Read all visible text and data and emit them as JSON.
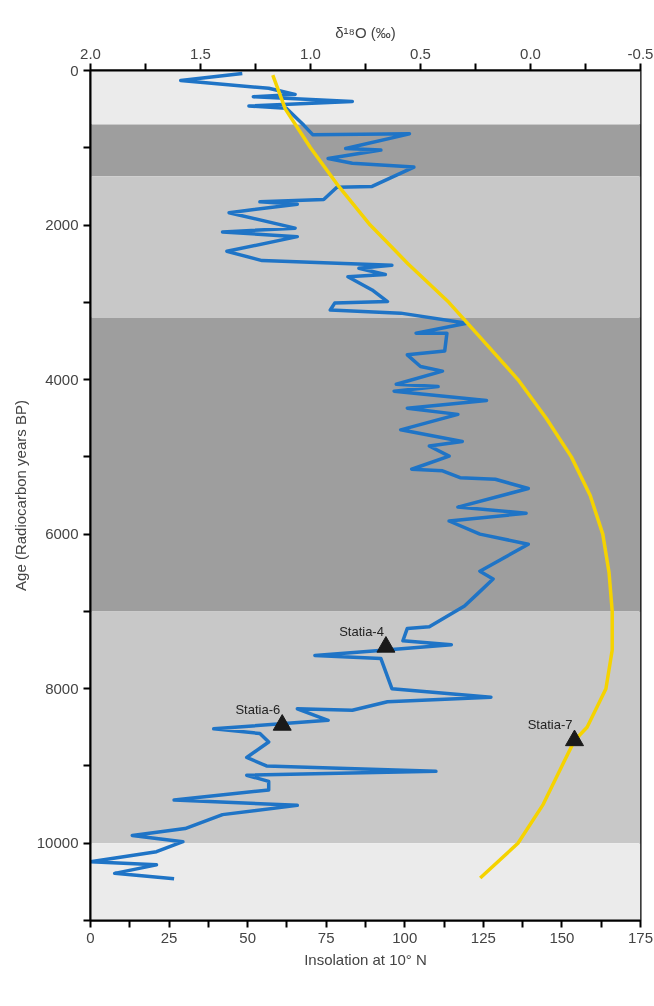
{
  "chart_data": {
    "type": "line",
    "xlabel": "Insolation at 10° N",
    "ylabel": "Age (Radiocarbon years BP)",
    "x2label": "δ¹⁸O (‰)",
    "xlim": [
      0,
      175
    ],
    "xticks": [
      0,
      {
        "value": 12.5,
        "label": null
      },
      25,
      {
        "value": 37.5,
        "label": null
      },
      50,
      {
        "value": 62.5,
        "label": null
      },
      75,
      {
        "value": 87.5,
        "label": null
      },
      100,
      {
        "value": 112.5,
        "label": null
      },
      125,
      {
        "value": 137.5,
        "label": null
      },
      150,
      {
        "value": 162.5,
        "label": null
      },
      175
    ],
    "x2lim": [
      2.0,
      -0.5
    ],
    "x2ticks": [
      {
        "value": 2.0,
        "label": "2.0"
      },
      {
        "value": 1.75,
        "label": null
      },
      {
        "value": 1.5,
        "label": "1.5"
      },
      {
        "value": 1.25,
        "label": null
      },
      {
        "value": 1.0,
        "label": "1.0"
      },
      {
        "value": 0.75,
        "label": null
      },
      {
        "value": 0.5,
        "label": "0.5"
      },
      {
        "value": 0.25,
        "label": null
      },
      {
        "value": 0.0,
        "label": "0.0"
      },
      {
        "value": -0.25,
        "label": null
      },
      {
        "value": -0.5,
        "label": "-0.5"
      }
    ],
    "ylim": [
      11000,
      0
    ],
    "yticks": [
      0,
      {
        "value": 1000,
        "label": null
      },
      2000,
      {
        "value": 3000,
        "label": null
      },
      4000,
      {
        "value": 5000,
        "label": null
      },
      6000,
      {
        "value": 7000,
        "label": null
      },
      8000,
      {
        "value": 9000,
        "label": null
      },
      10000,
      {
        "value": 11000,
        "label": null
      }
    ],
    "grid": false,
    "bands": [
      {
        "axis": "y",
        "from": 0,
        "to": 700,
        "color": "#ebebeb"
      },
      {
        "axis": "y",
        "from": 700,
        "to": 1370,
        "color": "#9e9e9e"
      },
      {
        "axis": "y",
        "from": 1370,
        "to": 3200,
        "color": "#c8c8c8"
      },
      {
        "axis": "y",
        "from": 3200,
        "to": 7000,
        "color": "#9e9e9e"
      },
      {
        "axis": "y",
        "from": 7000,
        "to": 10000,
        "color": "#c8c8c8"
      },
      {
        "axis": "y",
        "from": 10000,
        "to": 11000,
        "color": "#ebebeb"
      }
    ],
    "series": [
      {
        "axis": "x2",
        "color": "#1f74c6",
        "x": [
          1.31,
          1.59,
          1.19,
          1.07,
          1.26,
          0.81,
          1.28,
          1.11,
          1.03,
          0.99,
          0.55,
          0.84,
          0.68,
          0.92,
          0.81,
          0.53,
          0.72,
          0.88,
          0.94,
          1.23,
          1.06,
          1.37,
          1.07,
          1.4,
          1.06,
          1.38,
          1.22,
          0.63,
          0.78,
          0.66,
          0.83,
          0.72,
          0.65,
          0.89,
          0.91,
          0.59,
          0.29,
          0.52,
          0.38,
          0.39,
          0.56,
          0.5,
          0.4,
          0.61,
          0.42,
          0.62,
          0.2,
          0.56,
          0.33,
          0.59,
          0.31,
          0.46,
          0.37,
          0.54,
          0.4,
          0.32,
          0.16,
          0.01,
          0.33,
          0.02,
          0.37,
          0.23,
          0.01,
          0.23,
          0.17,
          0.24,
          0.3,
          0.46,
          0.56,
          0.58,
          0.36,
          0.7,
          0.98,
          0.68,
          0.63,
          0.18,
          0.65,
          0.81,
          1.06,
          0.92,
          1.44,
          1.23,
          1.19,
          1.29,
          1.2,
          0.43,
          1.29,
          1.19,
          1.19,
          1.62,
          1.06,
          1.4,
          1.57,
          1.81,
          1.58,
          1.7,
          2.0,
          1.7,
          1.89,
          1.62
        ],
        "values": [
          40,
          130,
          230,
          310,
          340,
          400,
          460,
          490,
          710,
          830,
          820,
          1010,
          1030,
          1140,
          1200,
          1250,
          1500,
          1510,
          1670,
          1700,
          1730,
          1840,
          2040,
          2090,
          2150,
          2340,
          2460,
          2520,
          2560,
          2640,
          2670,
          2840,
          2990,
          3010,
          3100,
          3140,
          3270,
          3400,
          3400,
          3630,
          3680,
          3830,
          3890,
          4060,
          4090,
          4150,
          4270,
          4370,
          4450,
          4650,
          4800,
          4860,
          4990,
          5160,
          5180,
          5270,
          5290,
          5410,
          5650,
          5730,
          5830,
          6000,
          6130,
          6480,
          6580,
          6770,
          6930,
          7200,
          7220,
          7380,
          7430,
          7510,
          7570,
          7610,
          8000,
          8110,
          8170,
          8280,
          8260,
          8410,
          8520,
          8580,
          8690,
          8890,
          9000,
          9070,
          9120,
          9200,
          9310,
          9440,
          9510,
          9630,
          9810,
          9900,
          9980,
          10110,
          10240,
          10280,
          10390,
          10460
        ]
      },
      {
        "color": "#f5d300",
        "x": [
          58,
          62,
          70,
          79,
          89,
          101,
          114,
          125,
          136,
          145,
          153,
          159,
          163,
          165,
          166,
          166,
          164,
          158,
          154,
          150,
          144,
          136,
          124
        ],
        "values": [
          60,
          500,
          1000,
          1500,
          2000,
          2500,
          3000,
          3500,
          4000,
          4500,
          5000,
          5500,
          6000,
          6500,
          7000,
          7500,
          8000,
          8500,
          8670,
          9000,
          9500,
          10000,
          10450
        ]
      },
      {
        "type": "scatter",
        "marker": "triangle",
        "color": "#1a1a1a",
        "x": [
          94,
          61,
          154
        ],
        "values": [
          7460,
          8470,
          8670
        ]
      }
    ],
    "annotations": [
      {
        "text": "Statia-4",
        "x": 94,
        "y": 7460
      },
      {
        "text": "Statia-6",
        "x": 61,
        "y": 8470
      },
      {
        "text": "Statia-7",
        "x": 154,
        "y": 8670
      }
    ]
  }
}
